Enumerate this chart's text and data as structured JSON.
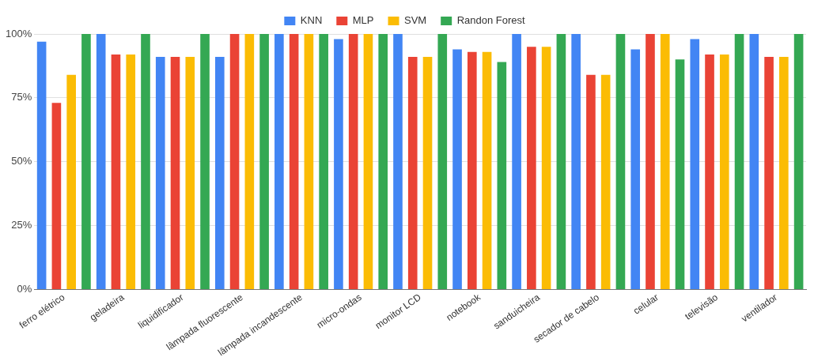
{
  "chart_data": {
    "type": "bar",
    "categories": [
      "ferro elétrico",
      "geladeira",
      "liquidificador",
      "lâmpada fluorescente",
      "lâmpada incandescente",
      "micro-ondas",
      "monitor LCD",
      "notebook",
      "sanduicheira",
      "secador de cabelo",
      "celular",
      "televisão",
      "ventilador"
    ],
    "series": [
      {
        "name": "KNN",
        "color": "#4285f4",
        "values": [
          97,
          100,
          91,
          91,
          100,
          98,
          100,
          94,
          100,
          100,
          94,
          98,
          100
        ]
      },
      {
        "name": "MLP",
        "color": "#ea4335",
        "values": [
          73,
          92,
          91,
          100,
          100,
          100,
          91,
          93,
          95,
          84,
          100,
          92,
          91
        ]
      },
      {
        "name": "SVM",
        "color": "#fbbc04",
        "values": [
          84,
          92,
          91,
          100,
          100,
          100,
          91,
          93,
          95,
          84,
          100,
          92,
          91
        ]
      },
      {
        "name": "Randon Forest",
        "color": "#34a853",
        "values": [
          100,
          100,
          100,
          100,
          100,
          100,
          100,
          89,
          100,
          100,
          90,
          100,
          100
        ]
      }
    ],
    "ylim": [
      0,
      100
    ],
    "yticks": [
      {
        "value": 0,
        "label": "0%"
      },
      {
        "value": 25,
        "label": "25%"
      },
      {
        "value": 50,
        "label": "50%"
      },
      {
        "value": 75,
        "label": "75%"
      },
      {
        "value": 100,
        "label": "100%"
      }
    ],
    "grid": "y",
    "legend": "top"
  }
}
